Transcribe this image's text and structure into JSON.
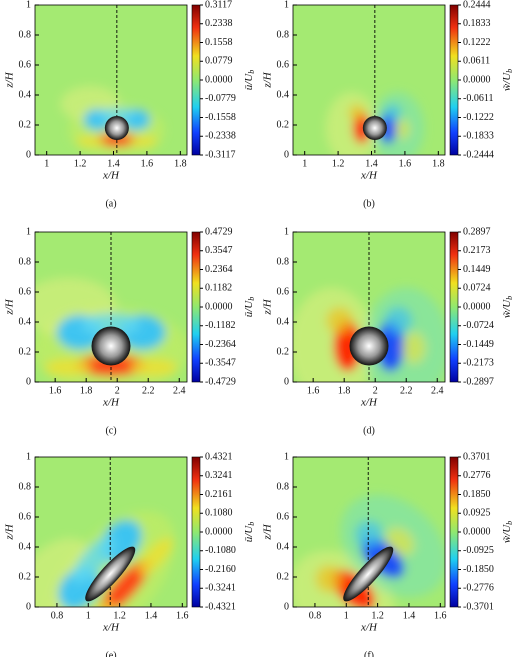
{
  "chart_data": [
    {
      "type": "contour",
      "caption": "(a)",
      "xlabel": "x/H",
      "ylabel": "z/H",
      "colorbar_label": {
        "main": "ū/U",
        "sub": "b"
      },
      "xlim": [
        0.93,
        1.84
      ],
      "xticks": [
        1,
        1.2,
        1.4,
        1.6,
        1.8
      ],
      "ylim": [
        0,
        1
      ],
      "yticks": [
        0,
        0.2,
        0.4,
        0.6,
        0.8,
        1
      ],
      "clim": [
        -0.3117,
        0.3117
      ],
      "cticks": [
        0.3117,
        0.2338,
        0.1558,
        0.0779,
        {
          "value": 0,
          "label": "0.0000"
        },
        -0.0779,
        -0.1558,
        -0.2338,
        -0.3117
      ],
      "reference_line_x": 1.42,
      "body": {
        "shape": "sphere",
        "center": [
          1.42,
          0.18
        ],
        "radius": 0.08
      }
    },
    {
      "type": "contour",
      "caption": "(b)",
      "xlabel": "x/H",
      "ylabel": "z/H",
      "colorbar_label": {
        "main": "w̃/U",
        "sub": "b"
      },
      "xlim": [
        0.93,
        1.84
      ],
      "xticks": [
        1,
        1.2,
        1.4,
        1.6,
        1.8
      ],
      "ylim": [
        0,
        1
      ],
      "yticks": [
        0,
        0.2,
        0.4,
        0.6,
        0.8,
        1
      ],
      "clim": [
        -0.2444,
        0.2444
      ],
      "cticks": [
        0.2444,
        0.1833,
        0.1222,
        0.0611,
        {
          "value": 0,
          "label": "0.0000"
        },
        -0.0611,
        -0.1222,
        -0.1833,
        -0.2444
      ],
      "reference_line_x": 1.42,
      "body": {
        "shape": "sphere",
        "center": [
          1.42,
          0.18
        ],
        "radius": 0.08
      }
    },
    {
      "type": "contour",
      "caption": "(c)",
      "xlabel": "x/H",
      "ylabel": "z/H",
      "colorbar_label": {
        "main": "ū/U",
        "sub": "b"
      },
      "xlim": [
        1.47,
        2.45
      ],
      "xticks": [
        1.6,
        1.8,
        2,
        2.2,
        2.4
      ],
      "ylim": [
        0,
        1
      ],
      "yticks": [
        0,
        0.2,
        0.4,
        0.6,
        0.8,
        1
      ],
      "clim": [
        -0.4729,
        0.4729
      ],
      "cticks": [
        0.4729,
        0.3547,
        0.2364,
        0.1182,
        {
          "value": 0,
          "label": "0.0000"
        },
        -0.1182,
        -0.2364,
        -0.3547,
        -0.4729
      ],
      "reference_line_x": 1.96,
      "body": {
        "shape": "sphere",
        "center": [
          1.96,
          0.24
        ],
        "radius": 0.13
      }
    },
    {
      "type": "contour",
      "caption": "(d)",
      "xlabel": "x/H",
      "ylabel": "z/H",
      "colorbar_label": {
        "main": "w̃/U",
        "sub": "b"
      },
      "xlim": [
        1.47,
        2.45
      ],
      "xticks": [
        1.6,
        1.8,
        2,
        2.2,
        2.4
      ],
      "ylim": [
        0,
        1
      ],
      "yticks": [
        0,
        0.2,
        0.4,
        0.6,
        0.8,
        1
      ],
      "clim": [
        -0.2897,
        0.2897
      ],
      "cticks": [
        0.2897,
        0.2173,
        0.1449,
        0.0724,
        {
          "value": 0,
          "label": "0.0000"
        },
        -0.0724,
        -0.1449,
        -0.2173,
        -0.2897
      ],
      "reference_line_x": 1.96,
      "body": {
        "shape": "sphere",
        "center": [
          1.96,
          0.24
        ],
        "radius": 0.13
      }
    },
    {
      "type": "contour",
      "caption": "(e)",
      "xlabel": "x/H",
      "ylabel": "z/H",
      "colorbar_label": {
        "main": "ū/U",
        "sub": "b"
      },
      "xlim": [
        0.66,
        1.63
      ],
      "xticks": [
        0.8,
        1,
        1.2,
        1.4,
        1.6
      ],
      "ylim": [
        0,
        1
      ],
      "yticks": [
        0,
        0.2,
        0.4,
        0.6,
        0.8,
        1
      ],
      "clim": [
        -0.4321,
        0.4321
      ],
      "cticks": [
        0.4321,
        0.3241,
        0.2161,
        {
          "value": 0.108,
          "label": "0.1080"
        },
        {
          "value": 0,
          "label": "0.0000"
        },
        {
          "value": -0.108,
          "label": "-0.1080"
        },
        {
          "value": -0.216,
          "label": "-0.2160"
        },
        -0.3241,
        -0.4321
      ],
      "reference_line_x": 1.14,
      "body": {
        "shape": "ellipsoid",
        "center": [
          1.14,
          0.22
        ],
        "semi_axes": [
          0.24,
          0.06
        ]
      }
    },
    {
      "type": "contour",
      "caption": "(f)",
      "xlabel": "x/H",
      "ylabel": "z/H",
      "colorbar_label": {
        "main": "w̃/U",
        "sub": "b"
      },
      "xlim": [
        0.66,
        1.63
      ],
      "xticks": [
        0.8,
        1,
        1.2,
        1.4,
        1.6
      ],
      "ylim": [
        0,
        1
      ],
      "yticks": [
        0,
        0.2,
        0.4,
        0.6,
        0.8,
        1
      ],
      "clim": [
        -0.3701,
        0.3701
      ],
      "cticks": [
        0.3701,
        0.2776,
        {
          "value": 0.185,
          "label": "0.1850"
        },
        0.0925,
        {
          "value": 0,
          "label": "0.0000"
        },
        -0.0925,
        {
          "value": -0.185,
          "label": "-0.1850"
        },
        -0.2776,
        -0.3701
      ],
      "reference_line_x": 1.14,
      "body": {
        "shape": "ellipsoid",
        "center": [
          1.14,
          0.22
        ],
        "semi_axes": [
          0.24,
          0.06
        ]
      }
    }
  ]
}
